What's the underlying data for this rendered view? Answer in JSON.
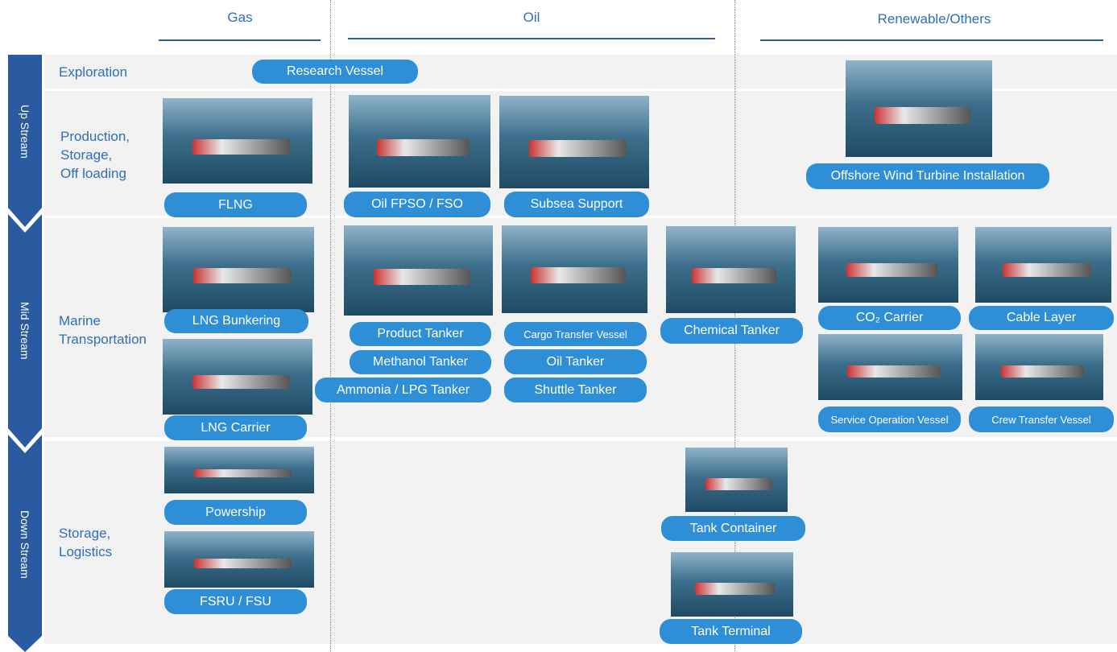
{
  "columns": [
    "Gas",
    "Oil",
    "Renewable/Others"
  ],
  "streams": [
    "Up Stream",
    "Mid Stream",
    "Down Stream"
  ],
  "rows": [
    "Exploration",
    "Production,\nStorage,\nOff loading",
    "Marine\nTransportation",
    "Storage,\nLogistics"
  ],
  "vessels": [
    "Research Vessel",
    "FLNG",
    "Oil FPSO / FSO",
    "Subsea Support",
    "Offshore Wind Turbine Installation",
    "LNG Bunkering",
    "LNG Carrier",
    "Product Tanker",
    "Methanol Tanker",
    "Ammonia / LPG Tanker",
    "Cargo Transfer Vessel",
    "Oil Tanker",
    "Shuttle Tanker",
    "Chemical Tanker",
    "CO₂ Carrier",
    "Cable Layer",
    "Service Operation Vessel",
    "Crew Transfer Vessel",
    "Powership",
    "FSRU / FSU",
    "Tank Container",
    "Tank Terminal"
  ]
}
